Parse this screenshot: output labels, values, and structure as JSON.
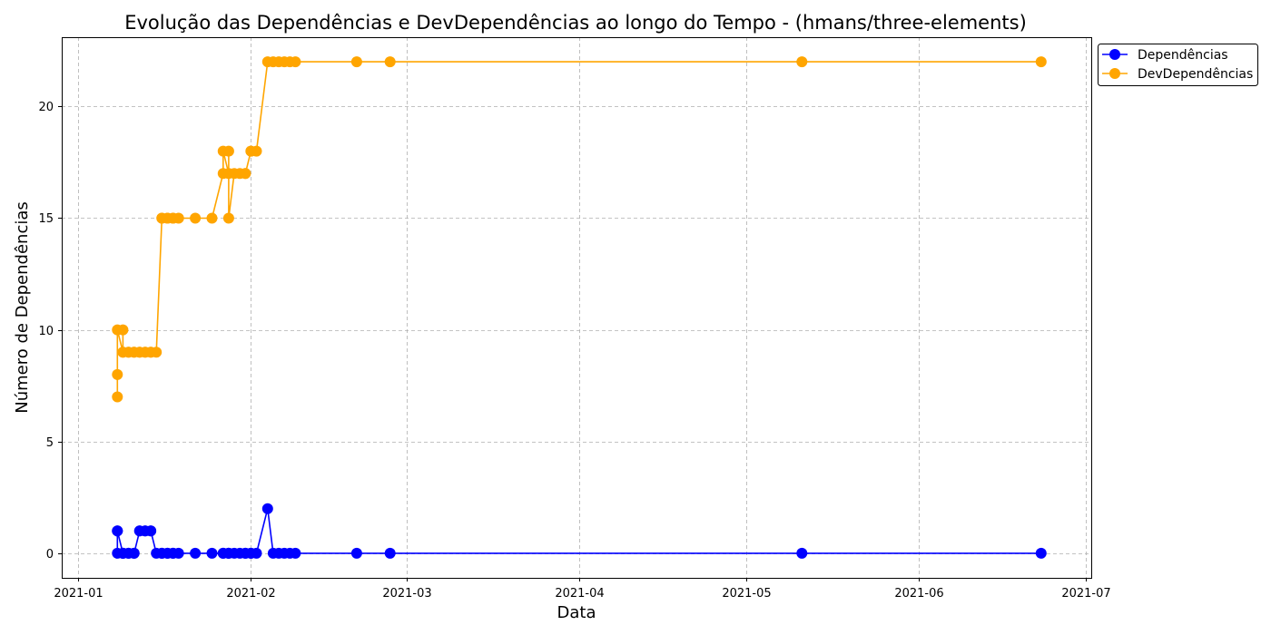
{
  "chart_data": {
    "type": "line",
    "title": "Evolução das Dependências e DevDependências ao longo do Tempo - (hmans/three-elements)",
    "xlabel": "Data",
    "ylabel": "Número de Dependências",
    "x_ticks": [
      "2021-01",
      "2021-02",
      "2021-03",
      "2021-04",
      "2021-05",
      "2021-06",
      "2021-07"
    ],
    "x_tick_dates": [
      "2021-01-01",
      "2021-02-01",
      "2021-03-01",
      "2021-04-01",
      "2021-05-01",
      "2021-06-01",
      "2021-07-01"
    ],
    "y_ticks": [
      0,
      5,
      10,
      15,
      20
    ],
    "xlim": [
      "2020-12-29",
      "2021-07-02"
    ],
    "ylim": [
      -1.1,
      23.1
    ],
    "grid": true,
    "legend_position": "top-right-outside",
    "x": [
      "2021-01-08",
      "2021-01-08",
      "2021-01-08",
      "2021-01-09",
      "2021-01-09",
      "2021-01-09",
      "2021-01-10",
      "2021-01-10",
      "2021-01-11",
      "2021-01-11",
      "2021-01-12",
      "2021-01-12",
      "2021-01-13",
      "2021-01-13",
      "2021-01-14",
      "2021-01-14",
      "2021-01-15",
      "2021-01-16",
      "2021-01-16",
      "2021-01-17",
      "2021-01-17",
      "2021-01-18",
      "2021-01-18",
      "2021-01-19",
      "2021-01-22",
      "2021-01-25",
      "2021-01-27",
      "2021-01-27",
      "2021-01-28",
      "2021-01-28",
      "2021-01-28",
      "2021-01-29",
      "2021-01-30",
      "2021-01-31",
      "2021-01-31",
      "2021-02-01",
      "2021-02-01",
      "2021-02-02",
      "2021-02-04",
      "2021-02-05",
      "2021-02-06",
      "2021-02-07",
      "2021-02-08",
      "2021-02-09",
      "2021-02-20",
      "2021-02-26",
      "2021-05-11",
      "2021-06-23"
    ],
    "series": [
      {
        "name": "Dependências",
        "color": "#0000ff",
        "values": [
          0,
          1,
          1,
          0,
          0,
          0,
          0,
          0,
          0,
          0,
          1,
          1,
          1,
          1,
          1,
          1,
          0,
          0,
          0,
          0,
          0,
          0,
          0,
          0,
          0,
          0,
          0,
          0,
          0,
          0,
          0,
          0,
          0,
          0,
          0,
          0,
          0,
          0,
          2,
          0,
          0,
          0,
          0,
          0,
          0,
          0,
          0,
          0
        ]
      },
      {
        "name": "DevDependências",
        "color": "#ffa500",
        "values": [
          7,
          8,
          10,
          9,
          10,
          9,
          9,
          9,
          9,
          9,
          9,
          9,
          9,
          9,
          9,
          9,
          9,
          15,
          15,
          15,
          15,
          15,
          15,
          15,
          15,
          15,
          17,
          18,
          17,
          18,
          15,
          17,
          17,
          17,
          17,
          18,
          18,
          18,
          22,
          22,
          22,
          22,
          22,
          22,
          22,
          22,
          22,
          22
        ]
      }
    ]
  }
}
